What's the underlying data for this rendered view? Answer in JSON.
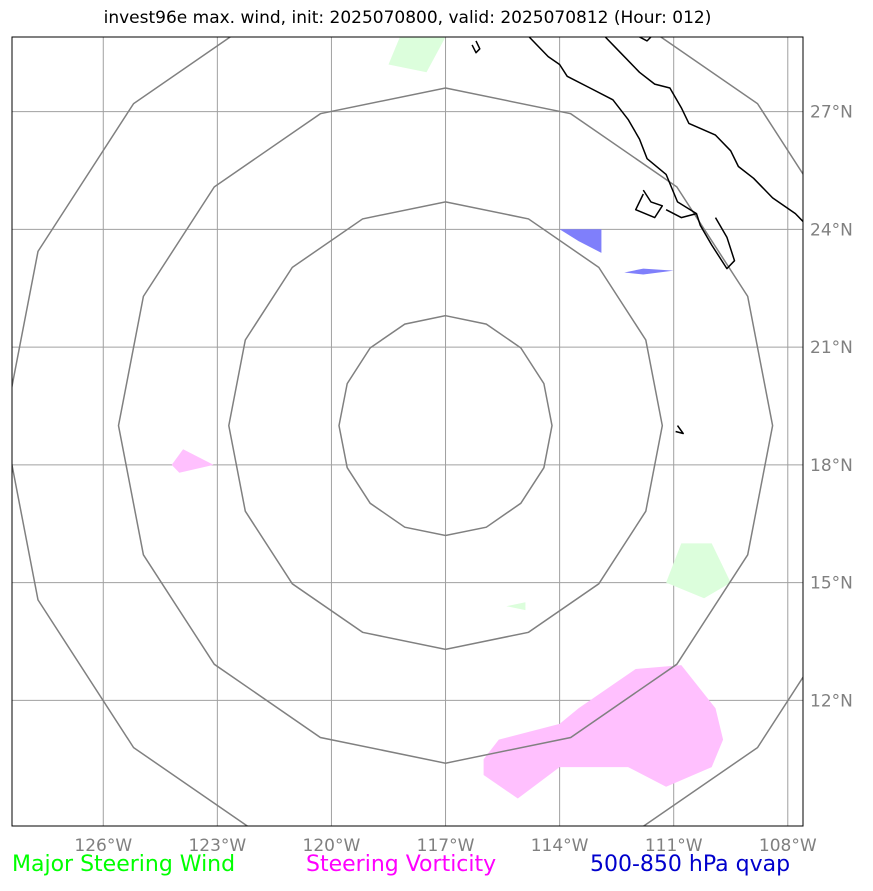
{
  "title": "invest96e max. wind, init: 2025070800, valid: 2025070812 (Hour: 012)",
  "map": {
    "lon_range": [
      -128.4,
      -107.6
    ],
    "lat_range": [
      8.8,
      28.9
    ],
    "longitude_ticks": [
      {
        "value": -126,
        "label": "126°W"
      },
      {
        "value": -123,
        "label": "123°W"
      },
      {
        "value": -120,
        "label": "120°W"
      },
      {
        "value": -117,
        "label": "117°W"
      },
      {
        "value": -114,
        "label": "114°W"
      },
      {
        "value": -111,
        "label": "111°W"
      },
      {
        "value": -108,
        "label": "108°W"
      }
    ],
    "latitude_ticks": [
      {
        "value": 27,
        "label": "27°N"
      },
      {
        "value": 24,
        "label": "24°N"
      },
      {
        "value": 21,
        "label": "21°N"
      },
      {
        "value": 18,
        "label": "18°N"
      },
      {
        "value": 15,
        "label": "15°N"
      },
      {
        "value": 12,
        "label": "12°N"
      }
    ],
    "gridlines": true,
    "range_rings": {
      "center_lon": -117.0,
      "center_lat": 19.0,
      "radii_deg": [
        2.8,
        5.7,
        8.6,
        11.6
      ]
    }
  },
  "legend": [
    {
      "label": "Major Steering Wind",
      "color": "#00ff00"
    },
    {
      "label": "Steering Vorticity",
      "color": "#ff00ff"
    },
    {
      "label": "500-850 hPa qvap",
      "color": "#0000cc"
    }
  ],
  "features": {
    "steering_wind": {
      "color": "#dcfedc",
      "areas": [
        [
          [
            -118.5,
            28.2
          ],
          [
            -117.5,
            28.0
          ],
          [
            -117.0,
            28.9
          ],
          [
            -118.2,
            28.9
          ]
        ],
        [
          [
            -110.8,
            16.0
          ],
          [
            -110.0,
            16.0
          ],
          [
            -109.5,
            15.0
          ],
          [
            -110.2,
            14.6
          ],
          [
            -111.2,
            15.0
          ]
        ],
        [
          [
            -115.4,
            14.4
          ],
          [
            -114.9,
            14.3
          ],
          [
            -114.9,
            14.5
          ]
        ]
      ]
    },
    "steering_vorticity": {
      "color": "#ffc0fe",
      "areas": [
        [
          [
            -123.1,
            18.0
          ],
          [
            -124.0,
            17.8
          ],
          [
            -124.2,
            18.0
          ],
          [
            -123.9,
            18.4
          ]
        ],
        [
          [
            -116.0,
            10.1
          ],
          [
            -115.1,
            9.5
          ],
          [
            -114.0,
            10.3
          ],
          [
            -112.2,
            10.3
          ],
          [
            -111.2,
            9.8
          ],
          [
            -110.0,
            10.3
          ],
          [
            -109.7,
            11.0
          ],
          [
            -109.9,
            11.8
          ],
          [
            -110.8,
            12.9
          ],
          [
            -112.0,
            12.8
          ],
          [
            -113.5,
            11.8
          ],
          [
            -114.0,
            11.4
          ],
          [
            -115.6,
            11.0
          ],
          [
            -116.0,
            10.5
          ]
        ]
      ]
    },
    "qvap": {
      "color": "#7f7ffb",
      "areas": [
        [
          [
            -114.0,
            24.0
          ],
          [
            -112.9,
            24.0
          ],
          [
            -112.9,
            23.4
          ],
          [
            -113.5,
            23.7
          ]
        ],
        [
          [
            -112.3,
            22.9
          ],
          [
            -111.8,
            23.0
          ],
          [
            -111.0,
            22.95
          ],
          [
            -111.8,
            22.85
          ]
        ]
      ]
    },
    "coastline": [
      [
        [
          -114.8,
          28.9
        ],
        [
          -114.3,
          28.4
        ],
        [
          -114.0,
          28.2
        ],
        [
          -113.8,
          27.9
        ],
        [
          -113.2,
          27.6
        ],
        [
          -112.6,
          27.3
        ],
        [
          -112.2,
          26.8
        ],
        [
          -111.9,
          26.3
        ],
        [
          -111.7,
          25.8
        ],
        [
          -111.2,
          25.4
        ],
        [
          -110.9,
          24.7
        ],
        [
          -110.4,
          24.4
        ],
        [
          -110.3,
          24.1
        ],
        [
          -110.0,
          23.6
        ],
        [
          -109.6,
          23.0
        ],
        [
          -109.4,
          23.2
        ],
        [
          -109.6,
          23.8
        ],
        [
          -109.9,
          24.3
        ]
      ],
      [
        [
          -111.8,
          25.0
        ],
        [
          -111.6,
          24.7
        ],
        [
          -111.3,
          24.6
        ],
        [
          -111.5,
          24.3
        ],
        [
          -112.0,
          24.5
        ],
        [
          -111.8,
          24.9
        ]
      ],
      [
        [
          -111.2,
          24.5
        ],
        [
          -110.8,
          24.3
        ],
        [
          -110.4,
          24.4
        ]
      ],
      [
        [
          -112.8,
          28.9
        ],
        [
          -112.4,
          28.5
        ],
        [
          -111.9,
          28.0
        ],
        [
          -111.5,
          27.7
        ],
        [
          -111.1,
          27.6
        ],
        [
          -110.8,
          27.1
        ],
        [
          -110.6,
          26.7
        ],
        [
          -109.9,
          26.4
        ],
        [
          -109.5,
          26.0
        ],
        [
          -109.3,
          25.6
        ],
        [
          -108.9,
          25.3
        ],
        [
          -108.4,
          24.8
        ],
        [
          -107.8,
          24.4
        ],
        [
          -107.6,
          24.2
        ]
      ],
      [
        [
          -116.2,
          28.8
        ],
        [
          -116.1,
          28.6
        ],
        [
          -116.2,
          28.5
        ],
        [
          -116.3,
          28.7
        ]
      ],
      [
        [
          -111.9,
          28.9
        ],
        [
          -111.7,
          28.8
        ],
        [
          -111.6,
          28.9
        ]
      ],
      [
        [
          -110.9,
          19.0
        ],
        [
          -110.75,
          18.8
        ],
        [
          -110.95,
          18.85
        ]
      ]
    ]
  }
}
